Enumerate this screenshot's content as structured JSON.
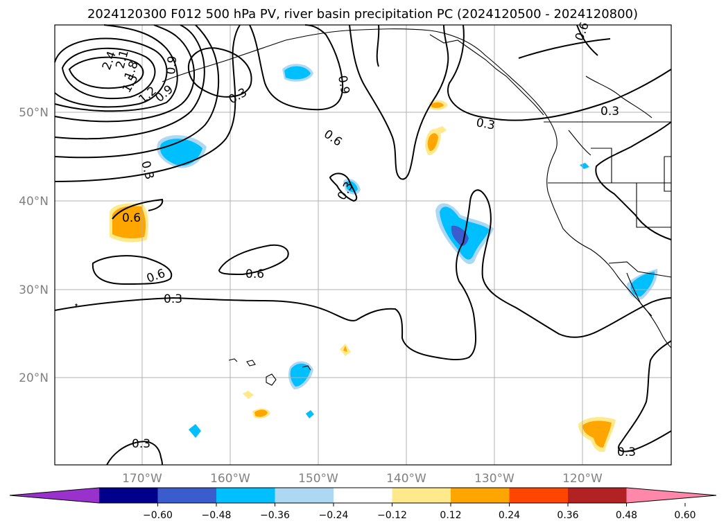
{
  "title": "2024120300 F012 500 hPa PV, river basin precipitation PC (2024120500 - 2024120800)",
  "map": {
    "lat_ticks": [
      "50°N",
      "40°N",
      "30°N",
      "20°N"
    ],
    "lon_ticks": [
      "170°W",
      "160°W",
      "150°W",
      "140°W",
      "130°W",
      "120°W"
    ],
    "grid": true,
    "extent": {
      "lon": [
        -180,
        -110
      ],
      "lat": [
        10,
        60
      ]
    }
  },
  "pv_contour_labels": [
    "1.2",
    "1.5",
    "1.8",
    "2.1",
    "2.4",
    "0.9",
    "0.9",
    "0.3",
    "0.6",
    "0.3",
    "0.3",
    "0.3",
    "0.6",
    "0.9",
    "0.6",
    "0.3",
    "0.6",
    "0.6",
    "0.3",
    "0.3",
    "0.3"
  ],
  "colorbar": {
    "ticks": [
      "−0.60",
      "−0.48",
      "−0.36",
      "−0.24",
      "−0.12",
      "0.12",
      "0.24",
      "0.36",
      "0.48",
      "0.60"
    ],
    "colors": [
      "#9932cc",
      "#00008b",
      "#3b5ccc",
      "#00bfff",
      "#add8f4",
      "#ffffff",
      "#ffe98a",
      "#ffa500",
      "#ff4500",
      "#b22222",
      "#ff88aa"
    ]
  }
}
